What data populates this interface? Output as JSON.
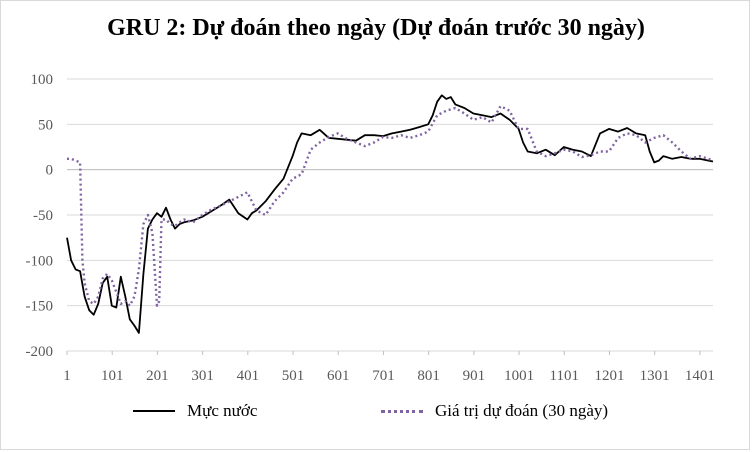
{
  "chart_data": {
    "type": "line",
    "title": "GRU 2: Dự đoán theo ngày (Dự đoán trước 30 ngày)",
    "xlabel": "",
    "ylabel": "",
    "xlim": [
      1,
      1430
    ],
    "ylim": [
      -200,
      100
    ],
    "y_ticks": [
      "100",
      "50",
      "0",
      "-50",
      "-100",
      "-150",
      "-200"
    ],
    "x_ticks": [
      "1",
      "101",
      "201",
      "301",
      "401",
      "501",
      "601",
      "701",
      "801",
      "901",
      "1001",
      "1101",
      "1201",
      "1301",
      "1401"
    ],
    "grid": "horizontal",
    "legend_position": "bottom",
    "series": [
      {
        "name": "Mực nước",
        "color": "#000000",
        "style": "solid",
        "x": [
          1,
          10,
          20,
          30,
          40,
          50,
          60,
          70,
          80,
          90,
          100,
          110,
          120,
          130,
          140,
          150,
          160,
          170,
          180,
          190,
          200,
          210,
          220,
          230,
          240,
          250,
          260,
          280,
          300,
          320,
          340,
          360,
          380,
          400,
          410,
          420,
          440,
          460,
          480,
          500,
          510,
          520,
          540,
          560,
          580,
          600,
          620,
          640,
          660,
          680,
          700,
          720,
          740,
          760,
          780,
          800,
          810,
          820,
          830,
          840,
          850,
          860,
          880,
          900,
          920,
          940,
          960,
          980,
          990,
          1000,
          1010,
          1020,
          1040,
          1060,
          1080,
          1100,
          1120,
          1140,
          1160,
          1180,
          1200,
          1220,
          1240,
          1260,
          1280,
          1290,
          1300,
          1310,
          1320,
          1340,
          1360,
          1380,
          1400,
          1420,
          1430
        ],
        "y": [
          -75,
          -100,
          -110,
          -112,
          -140,
          -155,
          -160,
          -148,
          -125,
          -118,
          -150,
          -152,
          -118,
          -140,
          -165,
          -172,
          -180,
          -115,
          -65,
          -55,
          -48,
          -52,
          -42,
          -55,
          -65,
          -60,
          -58,
          -56,
          -52,
          -46,
          -40,
          -33,
          -48,
          -55,
          -48,
          -45,
          -35,
          -22,
          -10,
          15,
          30,
          40,
          38,
          44,
          35,
          34,
          33,
          32,
          38,
          38,
          37,
          40,
          42,
          44,
          47,
          50,
          60,
          75,
          82,
          78,
          80,
          72,
          68,
          62,
          60,
          58,
          62,
          55,
          50,
          45,
          30,
          20,
          18,
          22,
          16,
          25,
          22,
          20,
          15,
          40,
          45,
          42,
          46,
          40,
          38,
          20,
          8,
          10,
          15,
          12,
          14,
          12,
          12,
          10,
          9
        ]
      },
      {
        "name": "Giá trị dự đoán (30 ngày)",
        "color": "#8064a2",
        "style": "dotted",
        "x": [
          1,
          10,
          20,
          30,
          35,
          40,
          50,
          60,
          70,
          80,
          90,
          100,
          110,
          120,
          130,
          140,
          150,
          160,
          170,
          180,
          190,
          200,
          205,
          210,
          220,
          230,
          240,
          250,
          260,
          280,
          300,
          320,
          340,
          360,
          380,
          400,
          420,
          440,
          460,
          480,
          500,
          520,
          540,
          560,
          580,
          600,
          620,
          640,
          660,
          680,
          700,
          720,
          740,
          760,
          780,
          800,
          820,
          840,
          860,
          880,
          900,
          920,
          940,
          960,
          980,
          1000,
          1020,
          1040,
          1060,
          1080,
          1100,
          1120,
          1140,
          1160,
          1180,
          1200,
          1220,
          1240,
          1260,
          1280,
          1300,
          1320,
          1340,
          1360,
          1380,
          1400,
          1420,
          1430
        ],
        "y": [
          12,
          12,
          10,
          8,
          -100,
          -125,
          -145,
          -148,
          -140,
          -120,
          -115,
          -122,
          -135,
          -148,
          -145,
          -150,
          -140,
          -110,
          -60,
          -50,
          -70,
          -150,
          -145,
          -55,
          -55,
          -60,
          -62,
          -58,
          -55,
          -58,
          -50,
          -44,
          -40,
          -35,
          -30,
          -25,
          -45,
          -50,
          -35,
          -25,
          -10,
          -5,
          22,
          30,
          36,
          40,
          34,
          30,
          26,
          30,
          36,
          35,
          38,
          35,
          38,
          42,
          60,
          65,
          68,
          62,
          55,
          58,
          52,
          70,
          65,
          45,
          45,
          20,
          15,
          18,
          22,
          20,
          14,
          16,
          20,
          20,
          35,
          40,
          38,
          30,
          35,
          38,
          30,
          20,
          12,
          15,
          12,
          10
        ]
      }
    ]
  }
}
